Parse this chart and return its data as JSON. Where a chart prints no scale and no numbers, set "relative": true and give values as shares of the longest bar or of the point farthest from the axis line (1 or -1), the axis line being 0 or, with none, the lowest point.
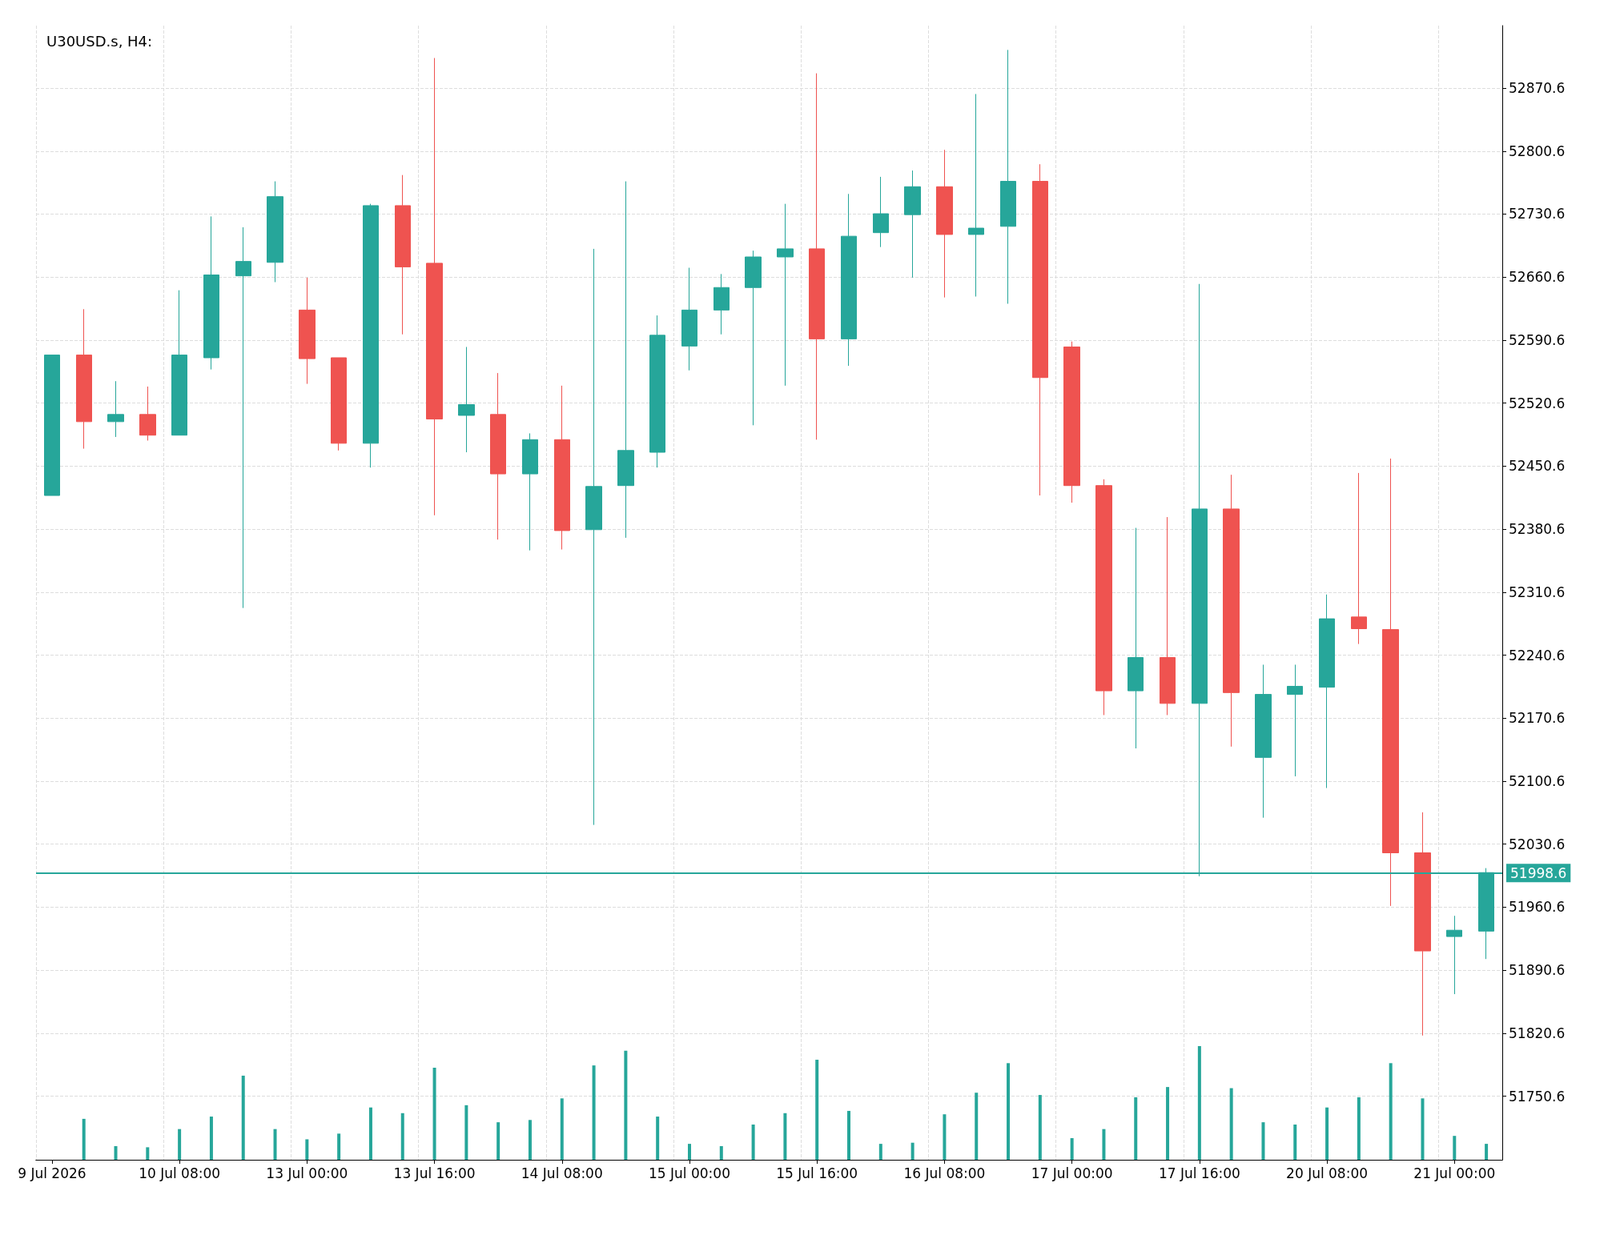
{
  "chart_data": [
    {
      "type": "candlestick",
      "title": "U30USD.s, H4:",
      "categories": [
        "9 Jul 2026",
        null,
        null,
        null,
        "10 Jul 08:00",
        null,
        null,
        null,
        "13 Jul 00:00",
        null,
        null,
        null,
        "13 Jul 16:00",
        null,
        null,
        null,
        "14 Jul 08:00",
        null,
        null,
        null,
        "15 Jul 00:00",
        null,
        null,
        null,
        "15 Jul 16:00",
        null,
        null,
        null,
        "16 Jul 08:00",
        null,
        null,
        null,
        "17 Jul 00:00",
        null,
        null,
        null,
        "17 Jul 16:00",
        null,
        null,
        null,
        "20 Jul 08:00",
        null,
        null,
        null,
        "21 Jul 00:00",
        null
      ],
      "ohlc": [
        [
          52418,
          52574,
          52418,
          52574
        ],
        [
          52574,
          52625,
          52470,
          52500
        ],
        [
          52500,
          52545,
          52483,
          52508
        ],
        [
          52508,
          52539,
          52479,
          52485
        ],
        [
          52485,
          52646,
          52485,
          52574
        ],
        [
          52571,
          52728,
          52558,
          52663
        ],
        [
          52662,
          52716,
          52293,
          52678
        ],
        [
          52677,
          52767,
          52655,
          52750
        ],
        [
          52624,
          52660,
          52542,
          52570
        ],
        [
          52571,
          52571,
          52468,
          52476
        ],
        [
          52476,
          52742,
          52449,
          52740
        ],
        [
          52740,
          52774,
          52597,
          52672
        ],
        [
          52676,
          52904,
          52396,
          52503
        ],
        [
          52507,
          52583,
          52466,
          52519
        ],
        [
          52508,
          52554,
          52369,
          52442
        ],
        [
          52442,
          52487,
          52357,
          52480
        ],
        [
          52480,
          52540,
          52358,
          52379
        ],
        [
          52380,
          52692,
          52052,
          52428
        ],
        [
          52429,
          52767,
          52371,
          52468
        ],
        [
          52466,
          52618,
          52449,
          52596
        ],
        [
          52584,
          52671,
          52557,
          52624
        ],
        [
          52624,
          52664,
          52597,
          52649
        ],
        [
          52649,
          52690,
          52496,
          52683
        ],
        [
          52683,
          52742,
          52540,
          52692
        ],
        [
          52692,
          52887,
          52480,
          52592
        ],
        [
          52592,
          52753,
          52562,
          52706
        ],
        [
          52710,
          52772,
          52694,
          52731
        ],
        [
          52730,
          52779,
          52660,
          52761
        ],
        [
          52761,
          52802,
          52638,
          52708
        ],
        [
          52708,
          52864,
          52639,
          52715
        ],
        [
          52717,
          52913,
          52631,
          52767
        ],
        [
          52767,
          52786,
          52418,
          52549
        ],
        [
          52583,
          52589,
          52410,
          52429
        ],
        [
          52429,
          52436,
          52174,
          52201
        ],
        [
          52201,
          52382,
          52137,
          52238
        ],
        [
          52238,
          52394,
          52174,
          52187
        ],
        [
          52187,
          52653,
          51995,
          52403
        ],
        [
          52403,
          52441,
          52139,
          52199
        ],
        [
          52127,
          52230,
          52060,
          52197
        ],
        [
          52197,
          52230,
          52106,
          52206
        ],
        [
          52205,
          52308,
          52093,
          52281
        ],
        [
          52283,
          52443,
          52253,
          52270
        ],
        [
          52269,
          52459,
          51962,
          52021
        ],
        [
          52021,
          52066,
          51818,
          51912
        ],
        [
          51928,
          51951,
          51864,
          51935
        ],
        [
          51934,
          52004,
          51903,
          51999
        ]
      ],
      "colors": [
        "#26a69a",
        "#ef5350",
        "#26a69a",
        "#ef5350",
        "#26a69a",
        "#26a69a",
        "#26a69a",
        "#26a69a",
        "#ef5350",
        "#ef5350",
        "#26a69a",
        "#ef5350",
        "#ef5350",
        "#26a69a",
        "#ef5350",
        "#26a69a",
        "#ef5350",
        "#26a69a",
        "#26a69a",
        "#26a69a",
        "#26a69a",
        "#26a69a",
        "#26a69a",
        "#26a69a",
        "#ef5350",
        "#26a69a",
        "#26a69a",
        "#26a69a",
        "#ef5350",
        "#26a69a",
        "#26a69a",
        "#ef5350",
        "#ef5350",
        "#ef5350",
        "#26a69a",
        "#ef5350",
        "#26a69a",
        "#ef5350",
        "#26a69a",
        "#26a69a",
        "#26a69a",
        "#ef5350",
        "#ef5350",
        "#ef5350",
        "#26a69a",
        "#26a69a"
      ],
      "ylim": [
        51680,
        52940
      ],
      "yticks": [
        51750.6,
        51820.6,
        51890.6,
        51960.6,
        52030.6,
        52100.6,
        52170.6,
        52240.6,
        52310.6,
        52380.6,
        52450.6,
        52520.6,
        52590.6,
        52660.6,
        52730.6,
        52800.6,
        52870.6
      ],
      "ref_lines": [
        {
          "axis": "y",
          "value": 51998.6,
          "label": "51998.6",
          "color": "#26a69a"
        }
      ],
      "grid": true
    },
    {
      "type": "bar",
      "relative": true,
      "color": "#26a69a",
      "categories": [
        null,
        null,
        null,
        null,
        null,
        null,
        null,
        null,
        null,
        null,
        null,
        null,
        null,
        null,
        null,
        null,
        null,
        null,
        null,
        null,
        null,
        null,
        null,
        null,
        null,
        null,
        null,
        null,
        null,
        null,
        null,
        null,
        null,
        null,
        null,
        null,
        null,
        null,
        null,
        null,
        null,
        null,
        null,
        null,
        null,
        null
      ],
      "values": [
        null,
        0.36,
        0.12,
        0.11,
        0.27,
        0.38,
        0.74,
        0.27,
        0.18,
        0.23,
        0.46,
        0.41,
        0.81,
        0.48,
        0.33,
        0.35,
        0.54,
        0.83,
        0.96,
        0.38,
        0.14,
        0.12,
        0.31,
        0.41,
        0.88,
        0.43,
        0.14,
        0.15,
        0.4,
        0.59,
        0.85,
        0.57,
        0.19,
        0.27,
        0.55,
        0.64,
        1,
        0.63,
        0.33,
        0.31,
        0.46,
        0.55,
        0.85,
        0.54,
        0.21,
        0.14
      ]
    }
  ]
}
